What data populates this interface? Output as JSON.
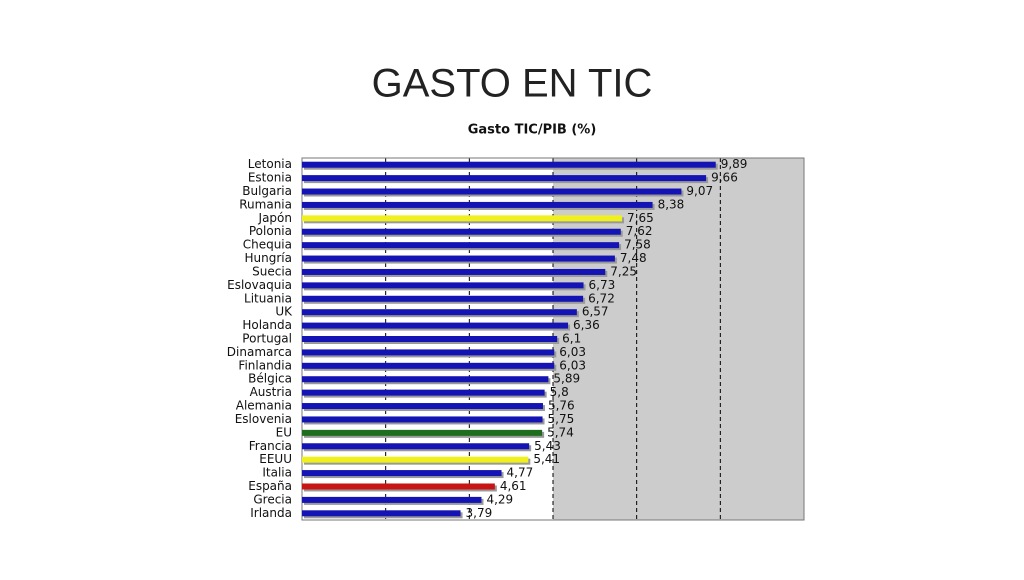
{
  "slide_title": "GASTO EN TIC",
  "chart_data": {
    "type": "bar",
    "orientation": "horizontal",
    "title": "Gasto TIC/PIB (%)",
    "categories": [
      "Letonia",
      "Estonia",
      "Bulgaria",
      "Rumania",
      "Japón",
      "Polonia",
      "Chequia",
      "Hungría",
      "Suecia",
      "Eslovaquia",
      "Lituania",
      "UK",
      "Holanda",
      "Portugal",
      "Dinamarca",
      "Finlandia",
      "Bélgica",
      "Austria",
      "Alemania",
      "Eslovenia",
      "EU",
      "Francia",
      "EEUU",
      "Italia",
      "España",
      "Grecia",
      "Irlanda"
    ],
    "values": [
      9.89,
      9.66,
      9.07,
      8.38,
      7.65,
      7.62,
      7.58,
      7.48,
      7.25,
      6.73,
      6.72,
      6.57,
      6.36,
      6.1,
      6.03,
      6.03,
      5.89,
      5.8,
      5.76,
      5.75,
      5.74,
      5.43,
      5.41,
      4.77,
      4.61,
      4.29,
      3.79
    ],
    "value_labels": [
      "9,89",
      "9,66",
      "9,07",
      "8,38",
      "7,65",
      "7,62",
      "7,58",
      "7,48",
      "7,25",
      "6,73",
      "6,72",
      "6,57",
      "6,36",
      "6,1",
      "6,03",
      "6,03",
      "5,89",
      "5,8",
      "5,76",
      "5,75",
      "5,74",
      "5,43",
      "5,41",
      "4,77",
      "4,61",
      "4,29",
      "3,79"
    ],
    "colors": [
      "#1414b4",
      "#1414b4",
      "#1414b4",
      "#1414b4",
      "#f0f01e",
      "#1414b4",
      "#1414b4",
      "#1414b4",
      "#1414b4",
      "#1414b4",
      "#1414b4",
      "#1414b4",
      "#1414b4",
      "#1414b4",
      "#1414b4",
      "#1414b4",
      "#1414b4",
      "#1414b4",
      "#1414b4",
      "#1414b4",
      "#1e6e1e",
      "#1414b4",
      "#f0f01e",
      "#1414b4",
      "#c81414",
      "#1414b4",
      "#1414b4"
    ],
    "xlim": [
      0,
      12
    ],
    "xticks": [
      2,
      4,
      6,
      8,
      10
    ],
    "grid": true,
    "shaded_region": [
      6,
      12
    ]
  }
}
